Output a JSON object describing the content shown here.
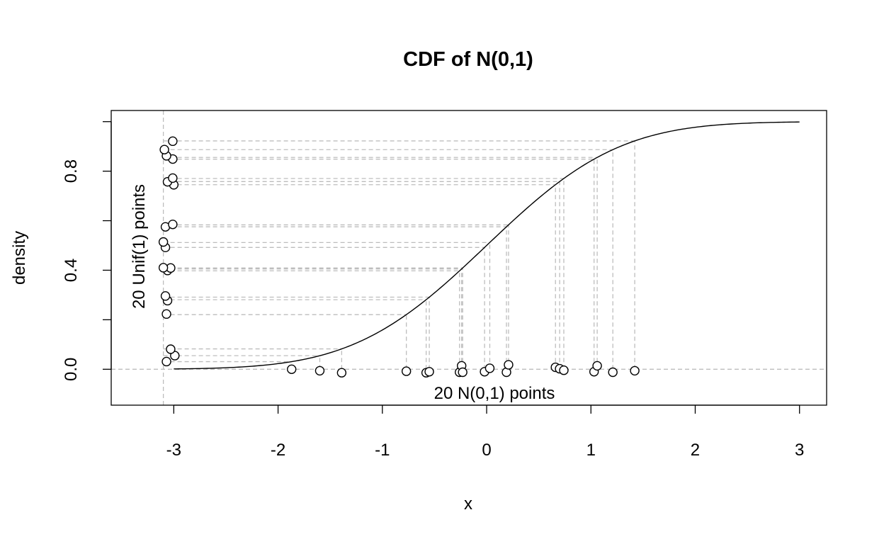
{
  "chart_data": {
    "type": "line",
    "title": "CDF of N(0,1)",
    "xlabel": "x",
    "ylabel": "density",
    "xlim": [
      -3.6,
      3.26
    ],
    "ylim": [
      -0.145,
      1.045
    ],
    "x_ticks": [
      -3,
      -2,
      -1,
      0,
      1,
      2,
      3
    ],
    "y_ticks": [
      0.0,
      0.4,
      0.8
    ],
    "x_tick_labels": [
      "-3",
      "-2",
      "-1",
      "0",
      "1",
      "2",
      "3"
    ],
    "y_tick_labels": [
      "0.0",
      "0.4",
      "0.8"
    ],
    "grid": false,
    "series": [
      {
        "values": "standard normal CDF evaluated on x in [-3, 3]"
      }
    ],
    "normal_points": [
      {
        "x": -1.87,
        "jitter": 0.0
      },
      {
        "x": -1.6,
        "jitter": -0.006
      },
      {
        "x": -1.39,
        "jitter": -0.014
      },
      {
        "x": -0.77,
        "jitter": -0.008
      },
      {
        "x": -0.58,
        "jitter": -0.014
      },
      {
        "x": -0.55,
        "jitter": -0.01
      },
      {
        "x": -0.26,
        "jitter": -0.012
      },
      {
        "x": -0.24,
        "jitter": 0.014
      },
      {
        "x": -0.23,
        "jitter": -0.012
      },
      {
        "x": -0.02,
        "jitter": -0.01
      },
      {
        "x": 0.03,
        "jitter": 0.004
      },
      {
        "x": 0.19,
        "jitter": -0.012
      },
      {
        "x": 0.21,
        "jitter": 0.018
      },
      {
        "x": 0.66,
        "jitter": 0.008
      },
      {
        "x": 0.7,
        "jitter": 0.002
      },
      {
        "x": 0.74,
        "jitter": -0.004
      },
      {
        "x": 1.03,
        "jitter": -0.01
      },
      {
        "x": 1.06,
        "jitter": 0.014
      },
      {
        "x": 1.21,
        "jitter": -0.012
      },
      {
        "x": 1.42,
        "jitter": -0.006
      }
    ],
    "uniform_points": [
      {
        "u": 0.031,
        "x": -3.07
      },
      {
        "u": 0.055,
        "x": -2.99
      },
      {
        "u": 0.081,
        "x": -3.03
      },
      {
        "u": 0.223,
        "x": -3.07
      },
      {
        "u": 0.277,
        "x": -3.06
      },
      {
        "u": 0.296,
        "x": -3.08
      },
      {
        "u": 0.399,
        "x": -3.06
      },
      {
        "u": 0.409,
        "x": -3.03
      },
      {
        "u": 0.41,
        "x": -3.1
      },
      {
        "u": 0.492,
        "x": -3.08
      },
      {
        "u": 0.514,
        "x": -3.1
      },
      {
        "u": 0.575,
        "x": -3.08
      },
      {
        "u": 0.585,
        "x": -3.01
      },
      {
        "u": 0.745,
        "x": -3.0
      },
      {
        "u": 0.757,
        "x": -3.06
      },
      {
        "u": 0.772,
        "x": -3.01
      },
      {
        "u": 0.849,
        "x": -3.01
      },
      {
        "u": 0.862,
        "x": -3.07
      },
      {
        "u": 0.887,
        "x": -3.09
      },
      {
        "u": 0.921,
        "x": -3.01
      }
    ],
    "reference_lines": {
      "horizontal_y": 0,
      "vertical_x": -3.1
    },
    "annotations": {
      "normal_label": "20 N(0,1) points",
      "uniform_label": "20 Unif(1) points"
    }
  }
}
